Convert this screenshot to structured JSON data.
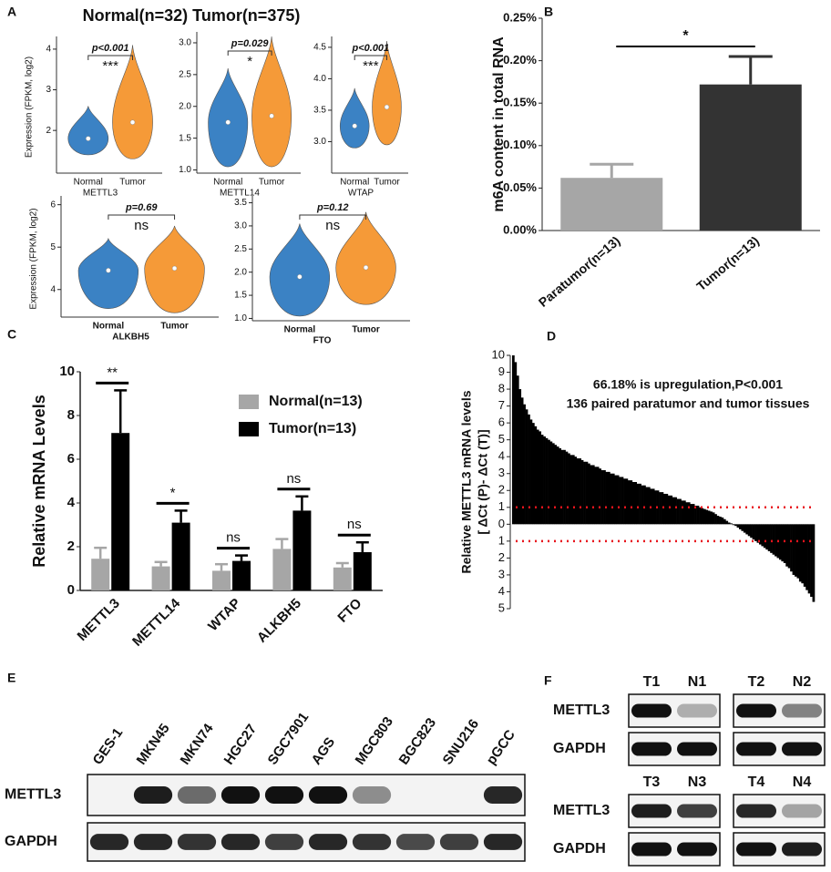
{
  "chart_data": [
    {
      "type": "violin",
      "panel": "A",
      "title": "Normal(n=32)  Tumor(n=375)",
      "categories": [
        "Normal",
        "Tumor"
      ],
      "colors": [
        "#3b82c4",
        "#f59a38"
      ],
      "plots": [
        {
          "name": "METTL3",
          "ylabel": "Expression (FPKM, log2)",
          "p_label": "p<0.001",
          "significance": "***",
          "ylim": [
            0.95,
            4.2
          ],
          "yticks": [
            2,
            3,
            4
          ],
          "groups": [
            {
              "min": 1.4,
              "median": 1.8,
              "max": 2.6
            },
            {
              "min": 1.3,
              "median": 2.2,
              "max": 4.1
            }
          ]
        },
        {
          "name": "METTL14",
          "p_label": "p=0.029",
          "significance": "*",
          "ylim": [
            0.95,
            3.1
          ],
          "yticks": [
            {
              "value": 1,
              "label": "1.0"
            },
            1.5,
            {
              "value": 2,
              "label": "2.0"
            },
            2.5,
            {
              "value": 3,
              "label": "3.0"
            }
          ],
          "groups": [
            {
              "min": 1.05,
              "median": 1.75,
              "max": 2.6
            },
            {
              "min": 1.05,
              "median": 1.85,
              "max": 3.1
            }
          ]
        },
        {
          "name": "WTAP",
          "p_label": "p<0.001",
          "significance": "***",
          "ylim": [
            2.5,
            4.6
          ],
          "yticks": [
            {
              "value": 3,
              "label": "3.0"
            },
            3.5,
            {
              "value": 4,
              "label": "4.0"
            },
            4.5
          ],
          "groups": [
            {
              "min": 2.9,
              "median": 3.25,
              "max": 3.85
            },
            {
              "min": 2.95,
              "median": 3.55,
              "max": 4.6
            }
          ]
        },
        {
          "name": "ALKBH5",
          "ylabel": "Expression (FPKM, log2)",
          "p_label": "p=0.69",
          "significance": "ns",
          "ylim": [
            3.35,
            6.1
          ],
          "yticks": [
            4,
            5,
            6
          ],
          "groups": [
            {
              "min": 3.55,
              "median": 4.45,
              "max": 5.2
            },
            {
              "min": 3.45,
              "median": 4.5,
              "max": 5.5
            }
          ]
        },
        {
          "name": "FTO",
          "p_label": "p=0.12",
          "significance": "ns",
          "ylim": [
            0.95,
            3.55
          ],
          "yticks": [
            {
              "value": 1,
              "label": "1.0"
            },
            1.5,
            {
              "value": 2,
              "label": "2.0"
            },
            2.5,
            {
              "value": 3,
              "label": "3.0"
            },
            3.5
          ],
          "groups": [
            {
              "min": 1.05,
              "median": 1.9,
              "max": 3.05
            },
            {
              "min": 1.3,
              "median": 2.1,
              "max": 3.3
            }
          ]
        }
      ]
    },
    {
      "type": "bar",
      "panel": "B",
      "ylabel": "m6A content in total RNA",
      "categories": [
        "Paratumor(n=13)",
        "Tumor(n=13)"
      ],
      "values": [
        0.062,
        0.172
      ],
      "errors": [
        0.016,
        0.033
      ],
      "colors": [
        "#a6a6a6",
        "#333333"
      ],
      "significance": "*",
      "ylim": [
        0,
        0.25
      ],
      "yticks": [
        {
          "value": 0,
          "label": "0.00%"
        },
        {
          "value": 0.05,
          "label": "0.05%"
        },
        {
          "value": 0.1,
          "label": "0.10%"
        },
        {
          "value": 0.15,
          "label": "0.15%"
        },
        {
          "value": 0.2,
          "label": "0.20%"
        },
        {
          "value": 0.25,
          "label": "0.25%"
        }
      ]
    },
    {
      "type": "grouped_bar",
      "panel": "C",
      "ylabel": "Relative mRNA Levels",
      "categories": [
        "METTL3",
        "METTL14",
        "WTAP",
        "ALKBH5",
        "FTO"
      ],
      "series": [
        {
          "name": "Normal(n=13)",
          "color": "#a6a6a6",
          "values": [
            1.45,
            1.1,
            0.9,
            1.9,
            1.05
          ],
          "errors": [
            0.5,
            0.2,
            0.3,
            0.45,
            0.2
          ]
        },
        {
          "name": "Tumor(n=13)",
          "color": "#000000",
          "values": [
            7.2,
            3.1,
            1.35,
            3.65,
            1.75
          ],
          "errors": [
            1.95,
            0.55,
            0.25,
            0.65,
            0.45
          ]
        }
      ],
      "significance": [
        "**",
        "*",
        "ns",
        "ns",
        "ns"
      ],
      "ylim": [
        0,
        10
      ],
      "yticks": [
        0,
        2,
        4,
        6,
        8,
        10
      ],
      "legend": "upper right"
    },
    {
      "type": "waterfall",
      "panel": "D",
      "ylabel": [
        "Relative METTL3 mRNA levels",
        "[ ΔCt (P)- ΔCt (T)]"
      ],
      "annotations": [
        "66.18% is  upregulation,P<0.001",
        "136 paired paratumor and tumor tissues"
      ],
      "color": "#000000",
      "thresholds": [
        1,
        -1
      ],
      "threshold_color": "#e8141c",
      "values": [
        10,
        9.6,
        8.8,
        8.0,
        7.5,
        7.1,
        6.8,
        6.5,
        6.2,
        6.0,
        5.8,
        5.6,
        5.5,
        5.3,
        5.2,
        5.1,
        5.0,
        4.9,
        4.8,
        4.7,
        4.6,
        4.5,
        4.4,
        4.4,
        4.3,
        4.2,
        4.1,
        4.1,
        4.0,
        3.9,
        3.9,
        3.8,
        3.7,
        3.7,
        3.6,
        3.5,
        3.5,
        3.4,
        3.4,
        3.3,
        3.2,
        3.2,
        3.1,
        3.1,
        3.0,
        3.0,
        2.9,
        2.9,
        2.8,
        2.8,
        2.7,
        2.7,
        2.6,
        2.6,
        2.5,
        2.5,
        2.4,
        2.4,
        2.3,
        2.3,
        2.2,
        2.2,
        2.1,
        2.1,
        2.0,
        2.0,
        1.9,
        1.9,
        1.8,
        1.8,
        1.7,
        1.7,
        1.6,
        1.6,
        1.5,
        1.5,
        1.4,
        1.4,
        1.3,
        1.3,
        1.2,
        1.2,
        1.1,
        1.1,
        1.0,
        0.95,
        0.9,
        0.85,
        0.8,
        0.75,
        0.7,
        0.6,
        0.5,
        0.45,
        0.4,
        0.3,
        0.2,
        0.1,
        0.05,
        -0.05,
        -0.1,
        -0.2,
        -0.3,
        -0.4,
        -0.5,
        -0.6,
        -0.7,
        -0.8,
        -0.9,
        -1.0,
        -1.1,
        -1.2,
        -1.3,
        -1.4,
        -1.5,
        -1.6,
        -1.7,
        -1.8,
        -1.9,
        -2.0,
        -2.1,
        -2.2,
        -2.3,
        -2.5,
        -2.6,
        -2.8,
        -3.0,
        -3.1,
        -3.2,
        -3.4,
        -3.5,
        -3.7,
        -3.9,
        -4.1,
        -4.3,
        -4.6
      ],
      "ylim": [
        -5,
        10
      ],
      "yticks": [
        10,
        9,
        8,
        7,
        6,
        5,
        4,
        3,
        2,
        1,
        0,
        {
          "value": -1,
          "label": "1"
        },
        {
          "value": -2,
          "label": "2"
        },
        {
          "value": -3,
          "label": "3"
        },
        {
          "value": -4,
          "label": "4"
        },
        {
          "value": -5,
          "label": "5"
        }
      ]
    },
    {
      "type": "blot",
      "panel": "E",
      "blocks": [
        {
          "rows": [
            "METTL3",
            "GAPDH"
          ],
          "groups": [
            {
              "lanes": [
                "GES-1",
                "MKN45",
                "MKN74",
                "HGC27",
                "SGC7901",
                "AGS",
                "MGC803",
                "BGC823",
                "SNU216",
                "pGCC"
              ],
              "bands": [
                [
                  0,
                  0.95,
                  0.6,
                  1,
                  1,
                  1,
                  0.45,
                  0,
                  0,
                  0.9
                ],
                [
                  0.9,
                  0.9,
                  0.85,
                  0.9,
                  0.8,
                  0.9,
                  0.85,
                  0.75,
                  0.8,
                  0.9
                ]
              ]
            }
          ]
        }
      ]
    },
    {
      "type": "blot",
      "panel": "F",
      "blocks": [
        {
          "rows": [
            "METTL3",
            "GAPDH"
          ],
          "groups": [
            {
              "lanes": [
                "T1",
                "N1"
              ],
              "bands": [
                [
                  1,
                  0.3
                ],
                [
                  1,
                  1
                ]
              ]
            },
            {
              "lanes": [
                "T2",
                "N2"
              ],
              "bands": [
                [
                  1,
                  0.5
                ],
                [
                  1,
                  1
                ]
              ]
            }
          ]
        },
        {
          "rows": [
            "METTL3",
            "GAPDH"
          ],
          "groups": [
            {
              "lanes": [
                "T3",
                "N3"
              ],
              "bands": [
                [
                  0.95,
                  0.8
                ],
                [
                  1,
                  1
                ]
              ]
            },
            {
              "lanes": [
                "T4",
                "N4"
              ],
              "bands": [
                [
                  0.9,
                  0.35
                ],
                [
                  1,
                  0.95
                ]
              ]
            }
          ]
        }
      ]
    }
  ]
}
